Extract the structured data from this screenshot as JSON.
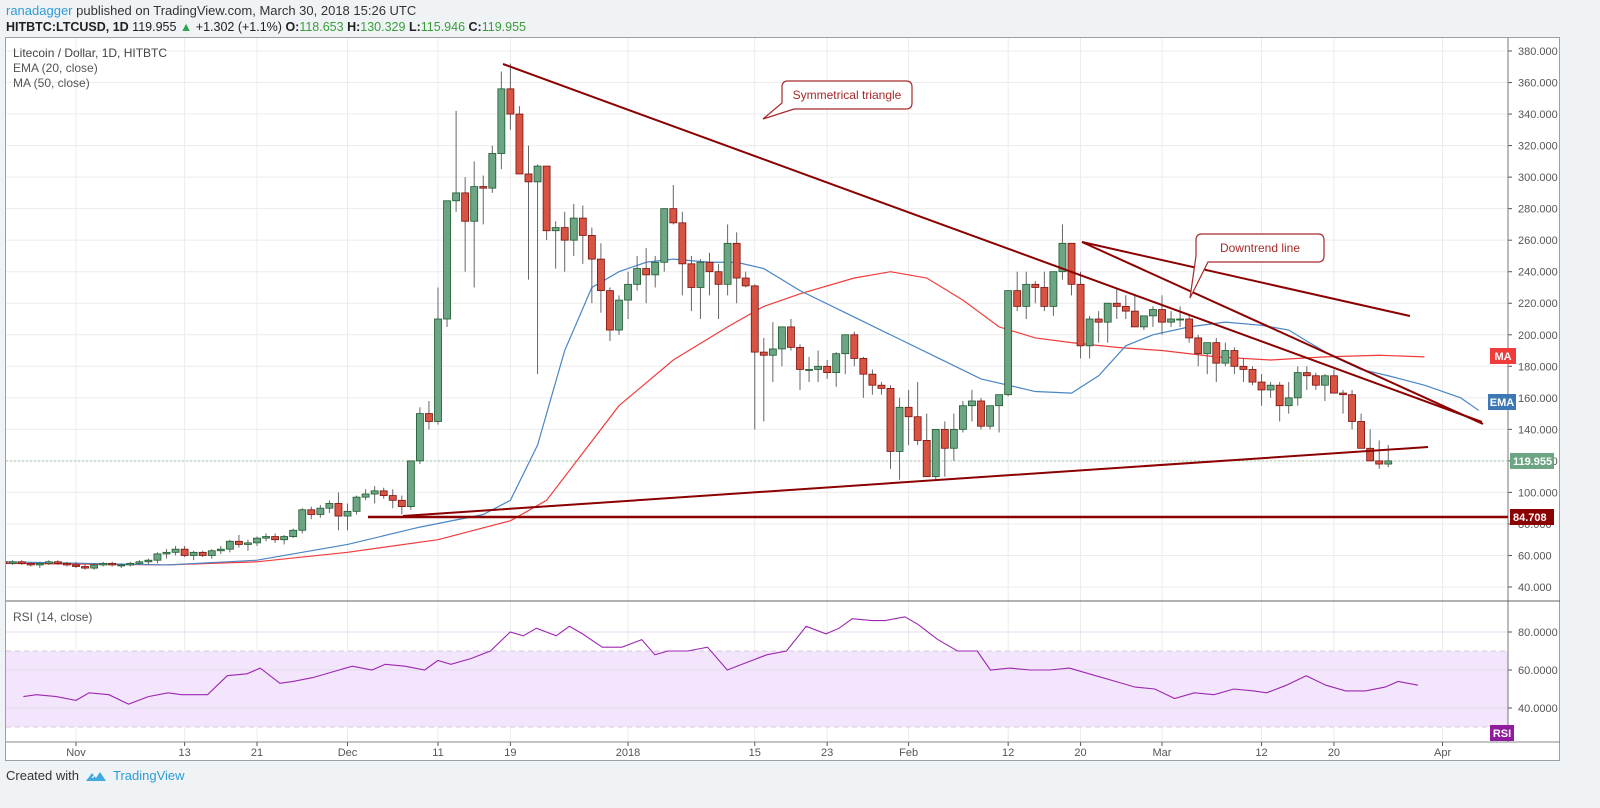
{
  "header": {
    "author": "ranadagger",
    "published_text": "published on TradingView.com, March 30, 2018 15:26 UTC",
    "symbol": "HITBTC:LTCUSD, 1D",
    "last": "119.955",
    "change": "+1.302 (+1.1%)",
    "o_label": "O:",
    "o": "118.653",
    "h_label": "H:",
    "h": "130.329",
    "l_label": "L:",
    "l": "115.946",
    "c_label": "C:",
    "c": "119.955"
  },
  "legend": {
    "title": "Litecoin / Dollar, 1D, HITBTC",
    "ema": "EMA (20, close)",
    "ma": "MA (50, close)",
    "rsi": "RSI (14, close)"
  },
  "footer": {
    "created_with": "Created with",
    "brand": "TradingView"
  },
  "colors": {
    "up": "#6ba583",
    "down": "#d75442",
    "ema": "#4a86c5",
    "ma": "#f23c3c",
    "trendline": "#8b0000",
    "rsi": "#9c27b0",
    "rsi_band": "#f3e5fc",
    "last_price_tag": "#6ba583",
    "support_tag": "#8b0000",
    "ma_tag": "#f23c3c",
    "ema_tag": "#3c78b4",
    "rsi_tag": "#8e1c9c"
  },
  "chart_data": {
    "type": "candlestick",
    "title": "Litecoin / Dollar, 1D, HITBTC",
    "price_axis": {
      "ticks": [
        "380.000",
        "360.000",
        "340.000",
        "320.000",
        "300.000",
        "280.000",
        "260.000",
        "240.000",
        "220.000",
        "200.000",
        "180.000",
        "160.000",
        "140.000",
        "120.000",
        "100.000",
        "80.000",
        "60.000",
        "40.000"
      ],
      "range": [
        30,
        385
      ]
    },
    "rsi_axis": {
      "ticks": [
        "80.0000",
        "60.0000",
        "40.0000"
      ],
      "band": [
        30,
        70
      ]
    },
    "x_ticks": [
      {
        "label": "Nov",
        "day": 0
      },
      {
        "label": "13",
        "day": 12
      },
      {
        "label": "21",
        "day": 20
      },
      {
        "label": "Dec",
        "day": 30
      },
      {
        "label": "11",
        "day": 40
      },
      {
        "label": "19",
        "day": 48
      },
      {
        "label": "2018",
        "day": 61
      },
      {
        "label": "15",
        "day": 75
      },
      {
        "label": "23",
        "day": 83
      },
      {
        "label": "Feb",
        "day": 92
      },
      {
        "label": "12",
        "day": 103
      },
      {
        "label": "20",
        "day": 111
      },
      {
        "label": "Mar",
        "day": 120
      },
      {
        "label": "12",
        "day": 131
      },
      {
        "label": "20",
        "day": 139
      },
      {
        "label": "Apr",
        "day": 151
      }
    ],
    "price_tags": {
      "last": "119.955",
      "support": "84.708",
      "ma": "MA",
      "ema": "EMA",
      "rsi": "RSI"
    },
    "annotations": [
      {
        "text": "Symmetrical triangle"
      },
      {
        "text": "Downtrend line"
      }
    ],
    "ohlc_start_day": -8,
    "ohlc": [
      [
        56,
        57,
        54,
        55
      ],
      [
        55,
        57,
        54,
        56
      ],
      [
        56,
        57,
        54,
        55
      ],
      [
        55,
        56,
        53,
        54
      ],
      [
        54,
        56,
        52,
        55
      ],
      [
        55,
        57,
        54,
        56
      ],
      [
        56,
        57,
        54,
        55
      ],
      [
        55,
        56,
        53,
        54
      ],
      [
        54,
        56,
        52,
        53
      ],
      [
        53,
        55,
        51,
        52
      ],
      [
        52,
        55,
        51,
        54
      ],
      [
        54,
        56,
        53,
        55
      ],
      [
        55,
        56,
        53,
        54
      ],
      [
        54,
        55,
        52,
        54
      ],
      [
        54,
        56,
        53,
        55
      ],
      [
        55,
        57,
        54,
        56
      ],
      [
        56,
        58,
        54,
        57
      ],
      [
        57,
        62,
        55,
        61
      ],
      [
        61,
        64,
        58,
        62
      ],
      [
        62,
        66,
        60,
        64
      ],
      [
        64,
        66,
        59,
        60
      ],
      [
        60,
        63,
        57,
        62
      ],
      [
        62,
        63,
        59,
        60
      ],
      [
        60,
        64,
        58,
        63
      ],
      [
        63,
        66,
        61,
        64
      ],
      [
        64,
        70,
        62,
        69
      ],
      [
        69,
        73,
        65,
        67
      ],
      [
        67,
        70,
        63,
        68
      ],
      [
        68,
        72,
        66,
        71
      ],
      [
        71,
        74,
        69,
        72
      ],
      [
        72,
        74,
        68,
        70
      ],
      [
        70,
        73,
        67,
        72
      ],
      [
        72,
        77,
        71,
        76
      ],
      [
        76,
        90,
        74,
        89
      ],
      [
        89,
        91,
        83,
        86
      ],
      [
        86,
        92,
        84,
        90
      ],
      [
        90,
        95,
        87,
        93
      ],
      [
        93,
        100,
        76,
        85
      ],
      [
        85,
        93,
        76,
        88
      ],
      [
        88,
        98,
        86,
        97
      ],
      [
        97,
        102,
        95,
        99
      ],
      [
        99,
        104,
        93,
        101
      ],
      [
        101,
        103,
        96,
        98
      ],
      [
        98,
        102,
        90,
        95
      ],
      [
        95,
        98,
        86,
        91
      ],
      [
        91,
        107,
        89,
        120
      ],
      [
        120,
        154,
        118,
        150
      ],
      [
        150,
        158,
        140,
        145
      ],
      [
        145,
        230,
        143,
        210
      ],
      [
        210,
        260,
        205,
        285
      ],
      [
        285,
        342,
        278,
        290
      ],
      [
        290,
        300,
        240,
        272
      ],
      [
        272,
        310,
        230,
        294
      ],
      [
        294,
        301,
        270,
        293
      ],
      [
        293,
        320,
        290,
        315
      ],
      [
        315,
        367,
        305,
        356
      ],
      [
        356,
        372,
        330,
        340
      ],
      [
        340,
        345,
        310,
        302
      ],
      [
        302,
        320,
        235,
        297
      ],
      [
        297,
        308,
        175,
        307
      ],
      [
        307,
        295,
        260,
        266
      ],
      [
        266,
        272,
        242,
        268
      ],
      [
        268,
        278,
        240,
        260
      ],
      [
        260,
        283,
        250,
        274
      ],
      [
        274,
        282,
        245,
        263
      ],
      [
        263,
        268,
        220,
        248
      ],
      [
        248,
        258,
        214,
        228
      ],
      [
        228,
        230,
        196,
        203
      ],
      [
        203,
        225,
        200,
        222
      ],
      [
        222,
        240,
        210,
        232
      ],
      [
        232,
        250,
        228,
        242
      ],
      [
        242,
        255,
        220,
        238
      ],
      [
        238,
        250,
        230,
        246
      ],
      [
        246,
        280,
        240,
        280
      ],
      [
        280,
        295,
        270,
        271
      ],
      [
        271,
        278,
        225,
        245
      ],
      [
        245,
        250,
        215,
        230
      ],
      [
        230,
        248,
        210,
        246
      ],
      [
        246,
        252,
        225,
        240
      ],
      [
        240,
        245,
        210,
        232
      ],
      [
        232,
        270,
        225,
        258
      ],
      [
        258,
        265,
        220,
        236
      ],
      [
        236,
        240,
        230,
        231
      ],
      [
        231,
        232,
        140,
        189
      ],
      [
        189,
        198,
        145,
        187
      ],
      [
        187,
        208,
        170,
        191
      ],
      [
        191,
        205,
        180,
        205
      ],
      [
        205,
        210,
        190,
        192
      ],
      [
        192,
        194,
        165,
        178
      ],
      [
        178,
        186,
        170,
        178
      ],
      [
        178,
        190,
        170,
        180
      ],
      [
        180,
        184,
        172,
        176
      ],
      [
        176,
        189,
        167,
        188
      ],
      [
        188,
        200,
        175,
        200
      ],
      [
        200,
        202,
        180,
        185
      ],
      [
        185,
        186,
        160,
        175
      ],
      [
        175,
        178,
        162,
        168
      ],
      [
        168,
        170,
        162,
        166
      ],
      [
        166,
        168,
        115,
        126
      ],
      [
        126,
        160,
        108,
        154
      ],
      [
        154,
        165,
        130,
        148
      ],
      [
        148,
        170,
        130,
        133
      ],
      [
        133,
        150,
        115,
        110
      ],
      [
        110,
        132,
        108,
        140
      ],
      [
        140,
        145,
        110,
        128
      ],
      [
        128,
        150,
        120,
        140
      ],
      [
        140,
        158,
        138,
        155
      ],
      [
        155,
        165,
        145,
        158
      ],
      [
        158,
        160,
        140,
        142
      ],
      [
        142,
        150,
        140,
        155
      ],
      [
        155,
        160,
        138,
        162
      ],
      [
        162,
        228,
        161,
        228
      ],
      [
        228,
        240,
        215,
        218
      ],
      [
        218,
        240,
        210,
        232
      ],
      [
        232,
        234,
        220,
        230
      ],
      [
        230,
        240,
        215,
        218
      ],
      [
        218,
        235,
        212,
        240
      ],
      [
        240,
        270,
        235,
        258
      ],
      [
        258,
        255,
        225,
        232
      ],
      [
        232,
        240,
        185,
        193
      ],
      [
        193,
        212,
        185,
        210
      ],
      [
        210,
        215,
        195,
        208
      ],
      [
        208,
        220,
        195,
        220
      ],
      [
        220,
        230,
        210,
        218
      ],
      [
        218,
        225,
        210,
        215
      ],
      [
        215,
        225,
        205,
        205
      ],
      [
        205,
        212,
        203,
        212
      ],
      [
        212,
        218,
        205,
        216
      ],
      [
        216,
        225,
        200,
        208
      ],
      [
        208,
        215,
        205,
        210
      ],
      [
        210,
        218,
        205,
        210
      ],
      [
        210,
        212,
        195,
        198
      ],
      [
        198,
        200,
        180,
        188
      ],
      [
        188,
        195,
        175,
        195
      ],
      [
        195,
        198,
        170,
        182
      ],
      [
        182,
        195,
        180,
        190
      ],
      [
        190,
        192,
        175,
        180
      ],
      [
        180,
        185,
        170,
        178
      ],
      [
        178,
        180,
        168,
        170
      ],
      [
        170,
        175,
        155,
        165
      ],
      [
        165,
        170,
        160,
        168
      ],
      [
        168,
        170,
        145,
        155
      ],
      [
        155,
        170,
        150,
        160
      ],
      [
        160,
        180,
        155,
        176
      ],
      [
        176,
        180,
        165,
        174
      ],
      [
        174,
        176,
        165,
        168
      ],
      [
        168,
        175,
        158,
        174
      ],
      [
        174,
        178,
        165,
        163
      ],
      [
        163,
        165,
        150,
        162
      ],
      [
        162,
        165,
        140,
        145
      ],
      [
        145,
        150,
        130,
        128
      ],
      [
        128,
        140,
        125,
        120
      ],
      [
        120,
        133,
        115,
        118
      ],
      [
        118,
        130,
        116,
        120
      ]
    ],
    "ema20": [
      [
        -8,
        56
      ],
      [
        10,
        54
      ],
      [
        20,
        57
      ],
      [
        30,
        67
      ],
      [
        38,
        78
      ],
      [
        45,
        86
      ],
      [
        48,
        95
      ],
      [
        51,
        130
      ],
      [
        54,
        190
      ],
      [
        57,
        230
      ],
      [
        60,
        240
      ],
      [
        63,
        246
      ],
      [
        66,
        248
      ],
      [
        70,
        246
      ],
      [
        73,
        246
      ],
      [
        76,
        242
      ],
      [
        80,
        228
      ],
      [
        85,
        214
      ],
      [
        90,
        200
      ],
      [
        95,
        186
      ],
      [
        100,
        172
      ],
      [
        103,
        168
      ],
      [
        106,
        164
      ],
      [
        110,
        163
      ],
      [
        113,
        174
      ],
      [
        116,
        193
      ],
      [
        119,
        200
      ],
      [
        123,
        205
      ],
      [
        127,
        208
      ],
      [
        131,
        206
      ],
      [
        134,
        203
      ],
      [
        136,
        196
      ],
      [
        139,
        186
      ],
      [
        142,
        178
      ],
      [
        145,
        174
      ],
      [
        149,
        168
      ],
      [
        153,
        160
      ],
      [
        155,
        152
      ]
    ],
    "ma50": [
      [
        -8,
        55
      ],
      [
        10,
        54
      ],
      [
        20,
        56
      ],
      [
        30,
        62
      ],
      [
        40,
        70
      ],
      [
        48,
        82
      ],
      [
        52,
        95
      ],
      [
        56,
        125
      ],
      [
        60,
        155
      ],
      [
        66,
        184
      ],
      [
        72,
        205
      ],
      [
        76,
        218
      ],
      [
        80,
        226
      ],
      [
        86,
        236
      ],
      [
        90,
        240
      ],
      [
        94,
        236
      ],
      [
        98,
        222
      ],
      [
        102,
        205
      ],
      [
        106,
        198
      ],
      [
        110,
        195
      ],
      [
        115,
        192
      ],
      [
        120,
        190
      ],
      [
        126,
        186
      ],
      [
        132,
        184
      ],
      [
        138,
        186
      ],
      [
        144,
        187
      ],
      [
        149,
        186
      ]
    ],
    "rsi": [
      [
        -8,
        46
      ],
      [
        -6,
        47
      ],
      [
        -3,
        46
      ],
      [
        0,
        44
      ],
      [
        2,
        48
      ],
      [
        5,
        47
      ],
      [
        8,
        42
      ],
      [
        11,
        46
      ],
      [
        14,
        48
      ],
      [
        16,
        47
      ],
      [
        20,
        47
      ],
      [
        23,
        57
      ],
      [
        26,
        58
      ],
      [
        28,
        61
      ],
      [
        31,
        53
      ],
      [
        33,
        54
      ],
      [
        36,
        56
      ],
      [
        39,
        59
      ],
      [
        42,
        62
      ],
      [
        45,
        60
      ],
      [
        47,
        63
      ],
      [
        50,
        62
      ],
      [
        53,
        60
      ],
      [
        55,
        65
      ],
      [
        57,
        63
      ],
      [
        60,
        66
      ],
      [
        63,
        70
      ],
      [
        66,
        80
      ],
      [
        68,
        78
      ],
      [
        70,
        82
      ],
      [
        73,
        78
      ],
      [
        75,
        83
      ],
      [
        77,
        79
      ],
      [
        80,
        72
      ],
      [
        83,
        72
      ],
      [
        86,
        76
      ],
      [
        88,
        68
      ],
      [
        90,
        70
      ],
      [
        93,
        70
      ],
      [
        96,
        72
      ],
      [
        99,
        60
      ],
      [
        102,
        64
      ],
      [
        105,
        68
      ],
      [
        108,
        70
      ],
      [
        111,
        83
      ],
      [
        114,
        79
      ],
      [
        116,
        82
      ],
      [
        118,
        87
      ],
      [
        121,
        86
      ],
      [
        123,
        86
      ],
      [
        126,
        88
      ],
      [
        128,
        84
      ],
      [
        131,
        76
      ],
      [
        134,
        70
      ],
      [
        137,
        70
      ],
      [
        139,
        60
      ],
      [
        142,
        61
      ],
      [
        145,
        60
      ],
      [
        148,
        60
      ],
      [
        151,
        61
      ],
      [
        155,
        57
      ],
      [
        158,
        54
      ],
      [
        161,
        51
      ],
      [
        164,
        50
      ],
      [
        167,
        45
      ],
      [
        170,
        48
      ],
      [
        173,
        47
      ],
      [
        176,
        50
      ],
      [
        179,
        49
      ],
      [
        181,
        48
      ],
      [
        184,
        52
      ],
      [
        187,
        57
      ],
      [
        190,
        52
      ],
      [
        193,
        49
      ],
      [
        196,
        49
      ],
      [
        199,
        51
      ],
      [
        201,
        54
      ],
      [
        204,
        52
      ]
    ]
  }
}
